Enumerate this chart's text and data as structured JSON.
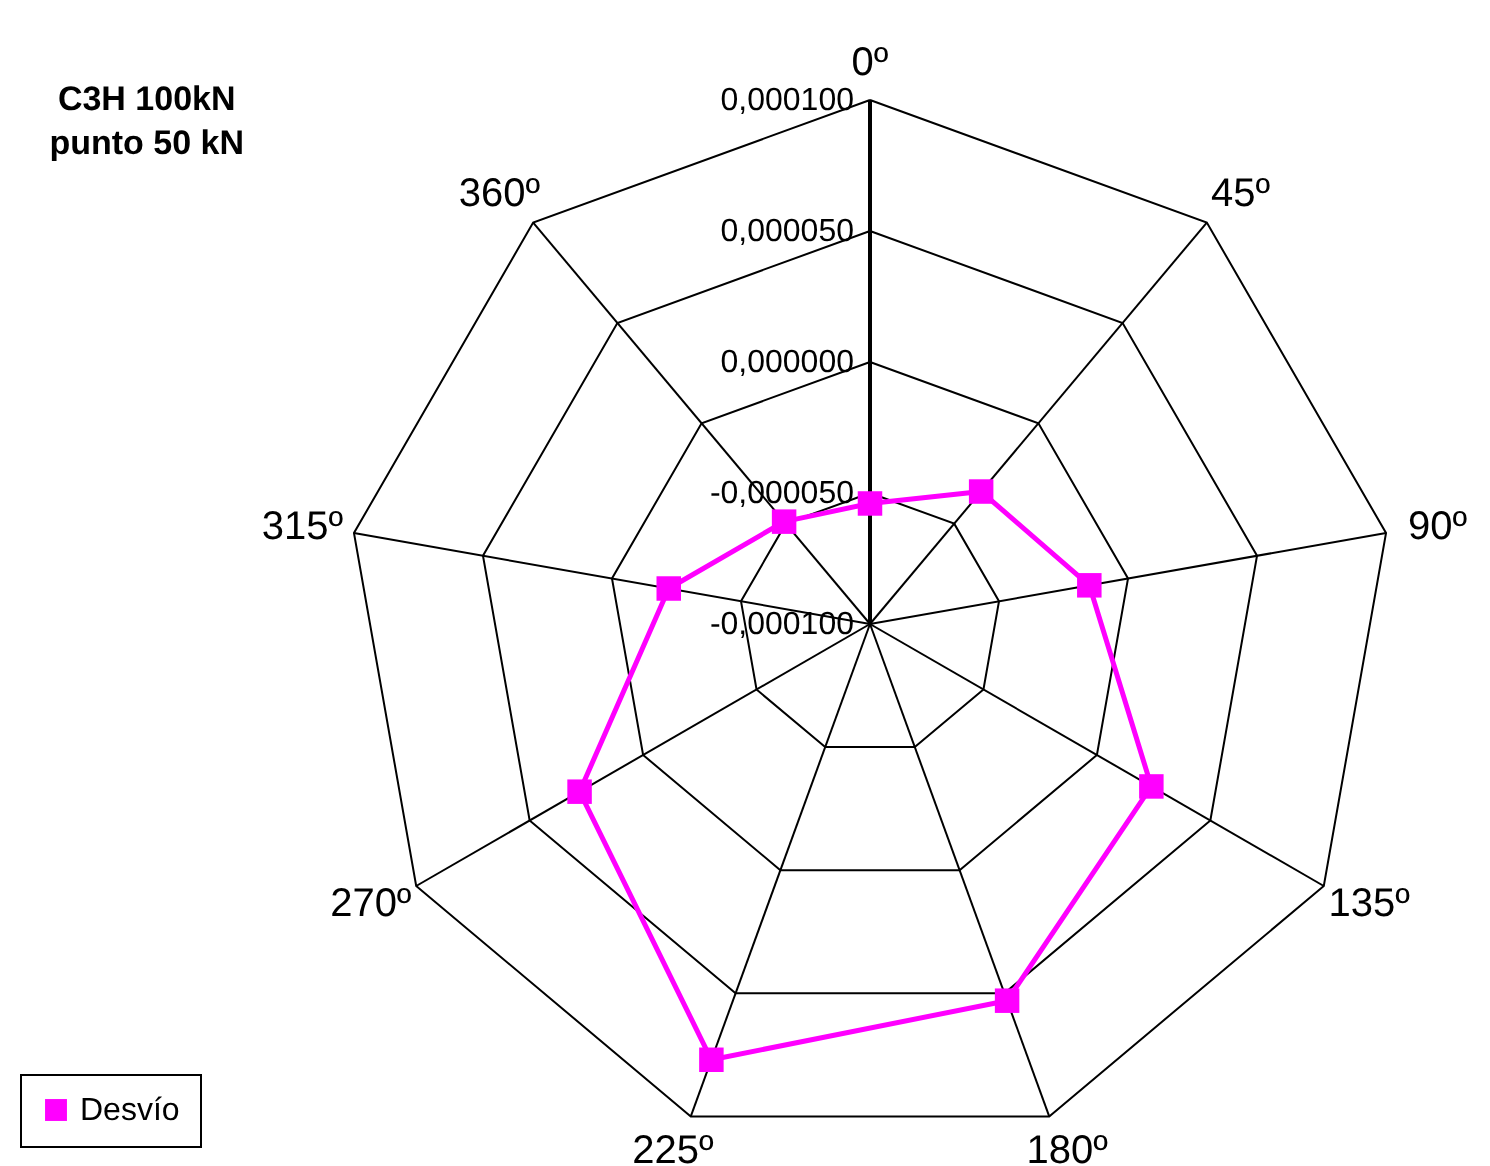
{
  "chart_data": {
    "type": "radar",
    "title": "C3H 100kN\npunto 50 kN",
    "categories": [
      "0º",
      "45º",
      "90º",
      "135º",
      "180º",
      "225º",
      "270º",
      "315º",
      "360º"
    ],
    "series": [
      {
        "name": "Desvío",
        "color": "#ff00ff",
        "values": [
          -5.4e-05,
          -3.4e-05,
          -1.5e-05,
          2.4e-05,
          5.3e-05,
          7.7e-05,
          2.8e-05,
          -2.2e-05,
          -4.9e-05
        ]
      }
    ],
    "ylim": [
      -0.0001,
      0.0001
    ],
    "yticks": [
      {
        "value": -0.0001,
        "label": "-0,000100"
      },
      {
        "value": -5e-05,
        "label": "-0,000050"
      },
      {
        "value": 0,
        "label": "0,000000"
      },
      {
        "value": 5e-05,
        "label": "0,000050"
      },
      {
        "value": 0.0001,
        "label": "0,000100"
      }
    ],
    "marker": "square",
    "legend": "bottom left",
    "grid": true
  }
}
